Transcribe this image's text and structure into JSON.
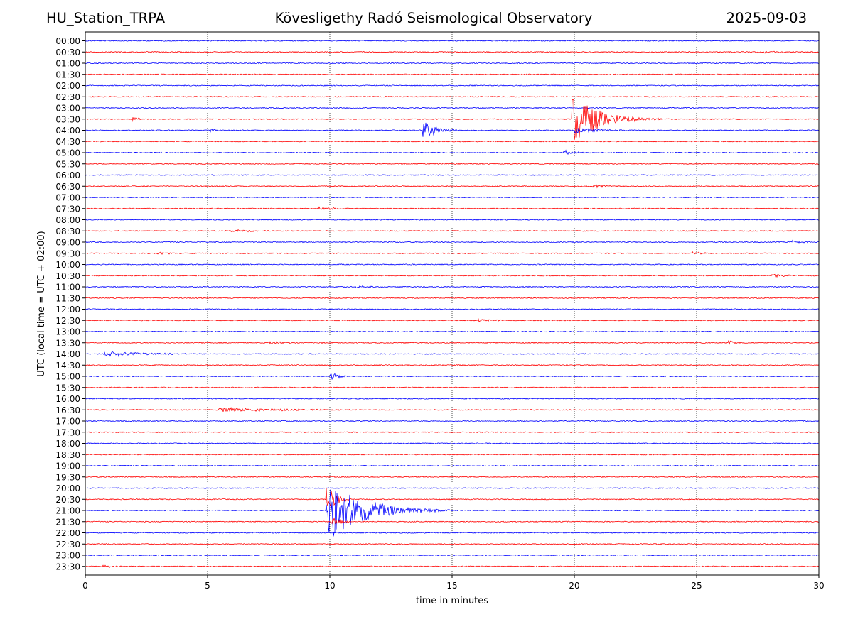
{
  "header": {
    "station": "HU_Station_TRPA",
    "observatory": "Kövesligethy Radó Seismological Observatory",
    "date": "2025-09-03"
  },
  "chart_data": {
    "type": "line",
    "title": "Kövesligethy Radó Seismological Observatory",
    "xlabel": "time in minutes",
    "ylabel": "UTC (local time = UTC + 02:00)",
    "xlim": [
      0,
      30
    ],
    "xticks": [
      0,
      5,
      10,
      15,
      20,
      25,
      30
    ],
    "vertical_gridlines": [
      5,
      10,
      15,
      20,
      25
    ],
    "grid_style": "dotted",
    "colors": {
      "even": "#0000ff",
      "odd": "#ff0000"
    },
    "rows": [
      "00:00",
      "00:30",
      "01:00",
      "01:30",
      "02:00",
      "02:30",
      "03:00",
      "03:30",
      "04:00",
      "04:30",
      "05:00",
      "05:30",
      "06:00",
      "06:30",
      "07:00",
      "07:30",
      "08:00",
      "08:30",
      "09:00",
      "09:30",
      "10:00",
      "10:30",
      "11:00",
      "11:30",
      "12:00",
      "12:30",
      "13:00",
      "13:30",
      "14:00",
      "14:30",
      "15:00",
      "15:30",
      "16:00",
      "16:30",
      "17:00",
      "17:30",
      "18:00",
      "18:30",
      "19:00",
      "19:30",
      "20:00",
      "20:30",
      "21:00",
      "21:30",
      "22:00",
      "22:30",
      "23:00",
      "23:30"
    ],
    "events": [
      {
        "row": "00:30",
        "t": 27.6,
        "amp": 0.25,
        "dur": 1.2,
        "decay": 0.5
      },
      {
        "row": "03:30",
        "t": 1.95,
        "amp": 0.4,
        "dur": 0.6,
        "decay": 0.25
      },
      {
        "row": "04:00",
        "t": 5.15,
        "amp": 0.3,
        "dur": 0.6,
        "decay": 0.2
      },
      {
        "row": "04:00",
        "t": 13.85,
        "amp": 1.6,
        "dur": 1.6,
        "decay": 0.5
      },
      {
        "row": "03:30",
        "t": 19.95,
        "amp": 4.2,
        "dur": 3.6,
        "decay": 1.0
      },
      {
        "row": "04:00",
        "t": 20.0,
        "amp": 0.5,
        "dur": 2.2,
        "decay": 0.9
      },
      {
        "row": "05:00",
        "t": 19.6,
        "amp": 0.35,
        "dur": 1.4,
        "decay": 0.6
      },
      {
        "row": "06:30",
        "t": 20.8,
        "amp": 0.3,
        "dur": 1.2,
        "decay": 0.5
      },
      {
        "row": "07:30",
        "t": 9.6,
        "amp": 0.3,
        "dur": 1.2,
        "decay": 0.5
      },
      {
        "row": "08:30",
        "t": 6.0,
        "amp": 0.25,
        "dur": 1.6,
        "decay": 0.7
      },
      {
        "row": "09:00",
        "t": 28.9,
        "amp": 0.35,
        "dur": 0.8,
        "decay": 0.35
      },
      {
        "row": "09:30",
        "t": 3.0,
        "amp": 0.3,
        "dur": 1.0,
        "decay": 0.4
      },
      {
        "row": "09:30",
        "t": 24.8,
        "amp": 0.3,
        "dur": 0.8,
        "decay": 0.35
      },
      {
        "row": "10:30",
        "t": 28.1,
        "amp": 0.4,
        "dur": 1.3,
        "decay": 0.5
      },
      {
        "row": "11:00",
        "t": 11.1,
        "amp": 0.25,
        "dur": 0.9,
        "decay": 0.4
      },
      {
        "row": "12:30",
        "t": 16.1,
        "amp": 0.25,
        "dur": 1.2,
        "decay": 0.5
      },
      {
        "row": "13:30",
        "t": 7.5,
        "amp": 0.25,
        "dur": 2.2,
        "decay": 0.9
      },
      {
        "row": "13:30",
        "t": 26.3,
        "amp": 0.5,
        "dur": 0.5,
        "decay": 0.2
      },
      {
        "row": "14:00",
        "t": 0.8,
        "amp": 0.45,
        "dur": 4.0,
        "decay": 1.5
      },
      {
        "row": "15:00",
        "t": 10.05,
        "amp": 0.7,
        "dur": 1.0,
        "decay": 0.3
      },
      {
        "row": "16:30",
        "t": 5.5,
        "amp": 0.35,
        "dur": 5.2,
        "decay": 2.5
      },
      {
        "row": "20:30",
        "t": 9.9,
        "amp": 2.2,
        "dur": 1.0,
        "decay": 0.35
      },
      {
        "row": "21:00",
        "t": 9.9,
        "amp": 5.2,
        "dur": 5.0,
        "decay": 1.4
      },
      {
        "row": "21:30",
        "t": 10.1,
        "amp": 1.0,
        "dur": 0.8,
        "decay": 0.3
      },
      {
        "row": "23:30",
        "t": 0.7,
        "amp": 0.25,
        "dur": 1.2,
        "decay": 0.5
      }
    ]
  }
}
